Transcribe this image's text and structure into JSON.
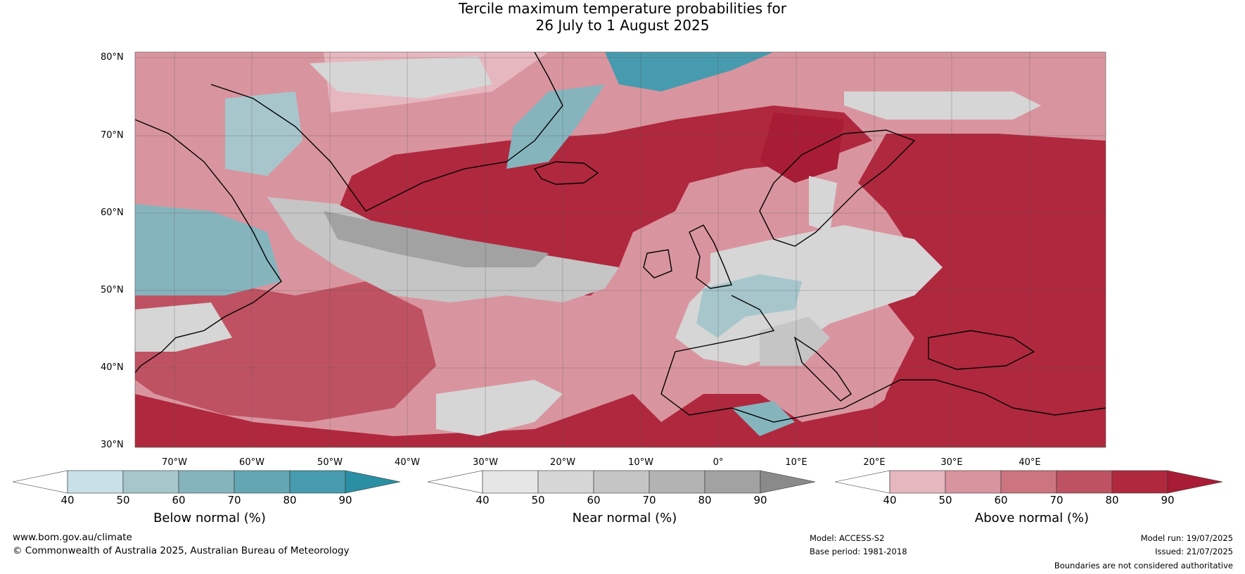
{
  "title": {
    "line1": "Tercile maximum temperature probabilities for",
    "line2": "26 July to 1 August 2025"
  },
  "map": {
    "lat_labels": [
      "80°N",
      "70°N",
      "60°N",
      "50°N",
      "40°N",
      "30°N"
    ],
    "lon_labels": [
      "70°W",
      "60°W",
      "50°W",
      "40°W",
      "30°W",
      "20°W",
      "10°W",
      "0°",
      "10°E",
      "20°E",
      "30°E",
      "40°E"
    ],
    "colors": {
      "above": [
        "#ffffff",
        "#e6b7bf",
        "#d9959f",
        "#cc7480",
        "#bf5262",
        "#b0283e",
        "#a81c35"
      ],
      "below": [
        "#ffffff",
        "#c8e0e6",
        "#a6c6cc",
        "#86b4bd",
        "#64a7b4",
        "#479bae",
        "#2a8fa3"
      ],
      "near": [
        "#ffffff",
        "#e6e6e6",
        "#d6d6d6",
        "#c5c5c5",
        "#b3b3b3",
        "#a2a2a2",
        "#8a8a8a"
      ],
      "coast": "#000000",
      "border": "#808080"
    }
  },
  "colorbars": [
    {
      "name": "below",
      "label": "Below normal (%)",
      "ticks": [
        "40",
        "50",
        "60",
        "70",
        "80",
        "90"
      ]
    },
    {
      "name": "near",
      "label": "Near normal (%)",
      "ticks": [
        "40",
        "50",
        "60",
        "70",
        "80",
        "90"
      ]
    },
    {
      "name": "above",
      "label": "Above normal (%)",
      "ticks": [
        "40",
        "50",
        "60",
        "70",
        "80",
        "90"
      ]
    }
  ],
  "footer": {
    "website": "www.bom.gov.au/climate",
    "copyright": "© Commonwealth of Australia 2025, Australian Bureau of Meteorology",
    "model": "Model: ACCESS-S2",
    "base_period": "Base period: 1981-2018",
    "model_run": "Model run: 19/07/2025",
    "issued": "Issued: 21/07/2025",
    "disclaimer": "Boundaries are not considered authoritative"
  }
}
